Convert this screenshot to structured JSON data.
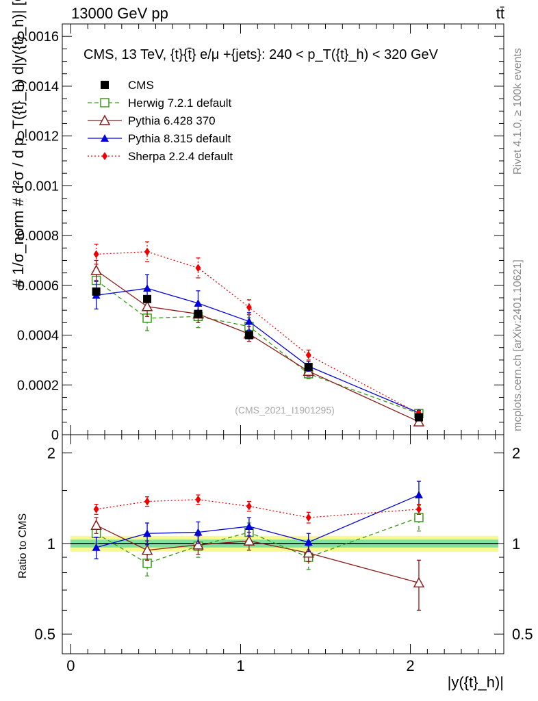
{
  "header": {
    "energy_label": "13000 GeV pp",
    "process_label": "tt̄"
  },
  "side_labels": {
    "rivet": "Rivet 4.1.0, ≥ 100k events",
    "mcplots": "mcplots.cern.ch [arXiv:2401.10621]"
  },
  "watermark": "(CMS_2021_I1901295)",
  "colors": {
    "CMS": "#000000",
    "Herwig": "#3a9a1a",
    "Pythia6": "#8b1a1a",
    "Pythia8": "#0000dd",
    "Sherpa": "#ee0000",
    "band_inner": "#7fe0a0",
    "band_outer": "#f8f890"
  },
  "chart_data": [
    {
      "type": "line",
      "panel": "main",
      "title": "CMS, 13 TeV, {t}{t̄} e/μ +{jets}: 240 <  p_T({t}_h) < 320 GeV",
      "ylabel": "# 1/σ_norm # d²σ / d p_T({t}_h) d|y({t}_h)| [GeV⁻¹]",
      "xlabel": "|y({t}_h)|",
      "xlim": [
        -0.05,
        2.55
      ],
      "ylim": [
        0,
        0.00165
      ],
      "yticks": [
        "0",
        "0.0002",
        "0.0004",
        "0.0006",
        "0.0008",
        "0.001",
        "0.0012",
        "0.0014",
        "0.0016"
      ],
      "ytick_values": [
        0,
        0.0002,
        0.0004,
        0.0006,
        0.0008,
        0.001,
        0.0012,
        0.0014,
        0.0016
      ],
      "series": [
        {
          "name": "CMS",
          "marker": "square",
          "line": "none",
          "x": [
            0.15,
            0.45,
            0.75,
            1.05,
            1.4,
            2.05
          ],
          "y": [
            0.000575,
            0.000545,
            0.000485,
            0.0004,
            0.000272,
            7e-05
          ],
          "err": [
            1e-05,
            1e-05,
            1e-05,
            1e-05,
            8e-06,
            5e-06
          ]
        },
        {
          "name": "Herwig 7.2.1 default",
          "marker": "open-square",
          "line": "dashed",
          "x": [
            0.15,
            0.45,
            0.75,
            1.05,
            1.4,
            2.05
          ],
          "y": [
            0.00062,
            0.000468,
            0.000475,
            0.000435,
            0.000245,
            8.5e-05
          ],
          "err": [
            5e-05,
            5e-05,
            4.5e-05,
            3.5e-05,
            2e-05,
            1e-05
          ]
        },
        {
          "name": "Pythia 6.428 370",
          "marker": "open-triangle",
          "line": "solid",
          "x": [
            0.15,
            0.45,
            0.75,
            1.05,
            1.4,
            2.05
          ],
          "y": [
            0.00066,
            0.000515,
            0.000485,
            0.000405,
            0.000255,
            5.2e-05
          ],
          "err": [
            4e-05,
            4e-05,
            3.5e-05,
            3e-05,
            2e-05,
            1e-05
          ]
        },
        {
          "name": "Pythia 8.315 default",
          "marker": "triangle",
          "line": "solid",
          "x": [
            0.15,
            0.45,
            0.75,
            1.05,
            1.4,
            2.05
          ],
          "y": [
            0.00056,
            0.000588,
            0.000528,
            0.000455,
            0.000275,
            8.8e-05
          ],
          "err": [
            5.5e-05,
            5.5e-05,
            5e-05,
            3.5e-05,
            2e-05,
            1e-05
          ]
        },
        {
          "name": "Sherpa 2.2.4 default",
          "marker": "diamond",
          "line": "dotted",
          "x": [
            0.15,
            0.45,
            0.75,
            1.05,
            1.4,
            2.05
          ],
          "y": [
            0.000725,
            0.000735,
            0.00067,
            0.000512,
            0.00032,
            8.5e-05
          ],
          "err": [
            4e-05,
            4e-05,
            4e-05,
            3e-05,
            2e-05,
            1e-05
          ]
        }
      ]
    },
    {
      "type": "line",
      "panel": "ratio",
      "ylabel": "Ratio to CMS",
      "xlabel": "|y({t}_h)|",
      "xlim": [
        -0.05,
        2.55
      ],
      "ylim": [
        0.43,
        2.3
      ],
      "yscale": "log",
      "yticks": [
        "0.5",
        "1",
        "2"
      ],
      "ytick_values": [
        0.5,
        1,
        2
      ],
      "xticks": [
        "0",
        "1",
        "2"
      ],
      "xtick_values": [
        0,
        1,
        2
      ],
      "reference_band": {
        "inner": 0.03,
        "outer": 0.06
      },
      "series": [
        {
          "name": "Herwig 7.2.1 default",
          "marker": "open-square",
          "line": "dashed",
          "x": [
            0.15,
            0.45,
            0.75,
            1.05,
            1.4,
            2.05
          ],
          "y": [
            1.08,
            0.86,
            0.98,
            1.09,
            0.9,
            1.22
          ],
          "err": [
            0.08,
            0.08,
            0.08,
            0.08,
            0.08,
            0.12
          ]
        },
        {
          "name": "Pythia 6.428 370",
          "marker": "open-triangle",
          "line": "solid",
          "x": [
            0.15,
            0.45,
            0.75,
            1.05,
            1.4,
            2.05
          ],
          "y": [
            1.15,
            0.95,
            0.99,
            1.02,
            0.93,
            0.74
          ],
          "err": [
            0.07,
            0.07,
            0.07,
            0.07,
            0.06,
            0.14
          ]
        },
        {
          "name": "Pythia 8.315 default",
          "marker": "triangle",
          "line": "solid",
          "x": [
            0.15,
            0.45,
            0.75,
            1.05,
            1.4,
            2.05
          ],
          "y": [
            0.97,
            1.08,
            1.09,
            1.14,
            1.01,
            1.45
          ],
          "err": [
            0.08,
            0.09,
            0.09,
            0.08,
            0.07,
            0.16
          ]
        },
        {
          "name": "Sherpa 2.2.4 default",
          "marker": "diamond",
          "line": "dotted",
          "x": [
            0.15,
            0.45,
            0.75,
            1.05,
            1.4,
            2.05
          ],
          "y": [
            1.3,
            1.38,
            1.4,
            1.33,
            1.22,
            1.3
          ],
          "err": [
            0.05,
            0.05,
            0.05,
            0.05,
            0.05,
            0.05
          ]
        }
      ]
    }
  ]
}
